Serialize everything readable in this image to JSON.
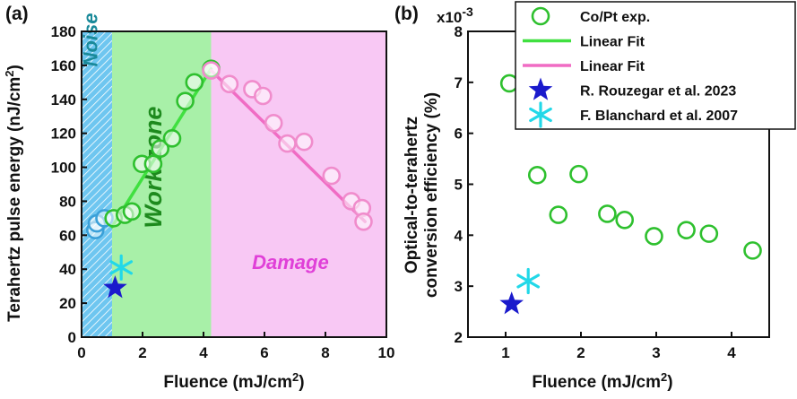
{
  "chart_data": [
    {
      "panel": "(a)",
      "type": "scatter",
      "xlabel": "Fluence (mJ/cm",
      "xlabel_sup": "2",
      "xlabel_end": ")",
      "ylabel": "Terahertz pulse energy (nJ/cm",
      "ylabel_sup": "2",
      "ylabel_end": ")",
      "xlim": [
        0,
        10
      ],
      "ylim": [
        0,
        180
      ],
      "xticks": [
        0,
        2,
        4,
        6,
        8,
        10
      ],
      "yticks": [
        0,
        20,
        40,
        60,
        80,
        100,
        120,
        140,
        160,
        180
      ],
      "regions": [
        {
          "label": "Noise",
          "x0": 0,
          "x1": 1.0,
          "color": "#6ec6f0",
          "text_color": "#1a8a9a",
          "hatch": true
        },
        {
          "label": "Work zone",
          "x0": 1.0,
          "x1": 4.25,
          "color": "#a8f0a8",
          "text_color": "#1e8a1e",
          "hatch": false
        },
        {
          "label": "Damage",
          "x0": 4.25,
          "x1": 10,
          "color": "#f8c8f4",
          "text_color": "#e040d8",
          "hatch": false
        }
      ],
      "series": [
        {
          "marker": "circle",
          "color": "#3aa0d8",
          "x": [
            0.45,
            0.5,
            0.75
          ],
          "y": [
            63,
            67,
            70
          ]
        },
        {
          "marker": "circle",
          "color": "#2ec02e",
          "x": [
            1.05,
            1.42,
            1.65,
            1.98,
            2.35,
            2.58,
            2.97,
            3.4,
            3.7,
            4.25
          ],
          "y": [
            70,
            72,
            74,
            102,
            102,
            111,
            117,
            139,
            150,
            158
          ]
        },
        {
          "marker": "circle",
          "color": "#f08ccc",
          "x": [
            4.25,
            4.85,
            5.6,
            5.95,
            6.3,
            6.75,
            7.3,
            8.2,
            8.85,
            9.2,
            9.25
          ],
          "y": [
            157,
            149,
            146,
            142,
            126,
            114,
            115,
            95,
            80,
            76,
            68
          ]
        },
        {
          "marker": "star",
          "color": "#1a1acc",
          "x": [
            1.1
          ],
          "y": [
            29
          ]
        },
        {
          "marker": "asterisk",
          "color": "#22d8e8",
          "x": [
            1.3
          ],
          "y": [
            41
          ]
        }
      ],
      "fits": [
        {
          "color": "#40e040",
          "x": [
            1.0,
            4.25
          ],
          "y": [
            65,
            158
          ]
        },
        {
          "color": "#f06cc4",
          "x": [
            4.25,
            9.3
          ],
          "y": [
            157,
            68
          ]
        }
      ]
    },
    {
      "panel": "(b)",
      "type": "scatter",
      "xlabel": "Fluence (mJ/cm",
      "xlabel_sup": "2",
      "xlabel_end": ")",
      "ylabel_line1": "Optical-to-terahertz",
      "ylabel_line2": "conversion efficiency (%)",
      "y_multiplier": "x10",
      "y_multiplier_exp": "-3",
      "xlim": [
        0.5,
        4.5
      ],
      "ylim": [
        2,
        8
      ],
      "xticks": [
        1,
        2,
        3,
        4
      ],
      "yticks": [
        2,
        3,
        4,
        5,
        6,
        7,
        8
      ],
      "series": [
        {
          "marker": "circle",
          "color": "#2ec02e",
          "x": [
            1.05,
            1.42,
            1.7,
            1.97,
            2.35,
            2.58,
            2.97,
            3.4,
            3.7,
            4.28
          ],
          "y": [
            6.98,
            5.18,
            4.4,
            5.2,
            4.42,
            4.3,
            3.98,
            4.1,
            4.03,
            3.7
          ]
        },
        {
          "marker": "star",
          "color": "#1a1acc",
          "x": [
            1.08
          ],
          "y": [
            2.65
          ]
        },
        {
          "marker": "asterisk",
          "color": "#22d8e8",
          "x": [
            1.3
          ],
          "y": [
            3.1
          ]
        }
      ]
    }
  ],
  "legend": {
    "placement": "top-right",
    "entries": [
      {
        "label": "Co/Pt exp.",
        "marker": "circle",
        "color": "#2ec02e"
      },
      {
        "label": "Linear Fit",
        "marker": "line",
        "color": "#40e040"
      },
      {
        "label": "Linear Fit",
        "marker": "line",
        "color": "#f06cc4"
      },
      {
        "label": "R. Rouzegar et al. 2023",
        "marker": "star",
        "color": "#1a1acc"
      },
      {
        "label": "F. Blanchard et al. 2007",
        "marker": "asterisk",
        "color": "#22d8e8"
      }
    ]
  }
}
